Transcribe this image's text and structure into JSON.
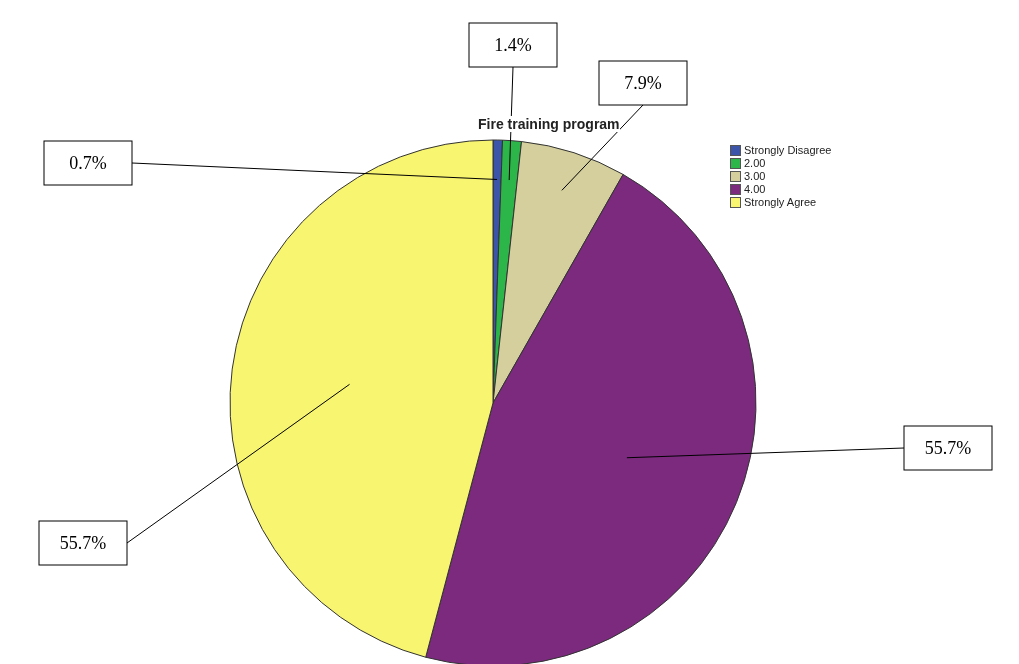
{
  "chart_data": {
    "type": "pie",
    "title": "Fire training program",
    "categories": [
      "Strongly Disagree",
      "2.00",
      "3.00",
      "4.00",
      "Strongly Agree"
    ],
    "values": [
      0.7,
      1.4,
      7.9,
      55.7,
      55.7
    ],
    "value_labels": [
      "0.7%",
      "1.4%",
      "7.9%",
      "55.7%",
      "55.7%"
    ],
    "colors": [
      "#3c55a8",
      "#2cb64a",
      "#d4cf9d",
      "#7b2a7e",
      "#f8f571"
    ],
    "legend": "top right"
  }
}
